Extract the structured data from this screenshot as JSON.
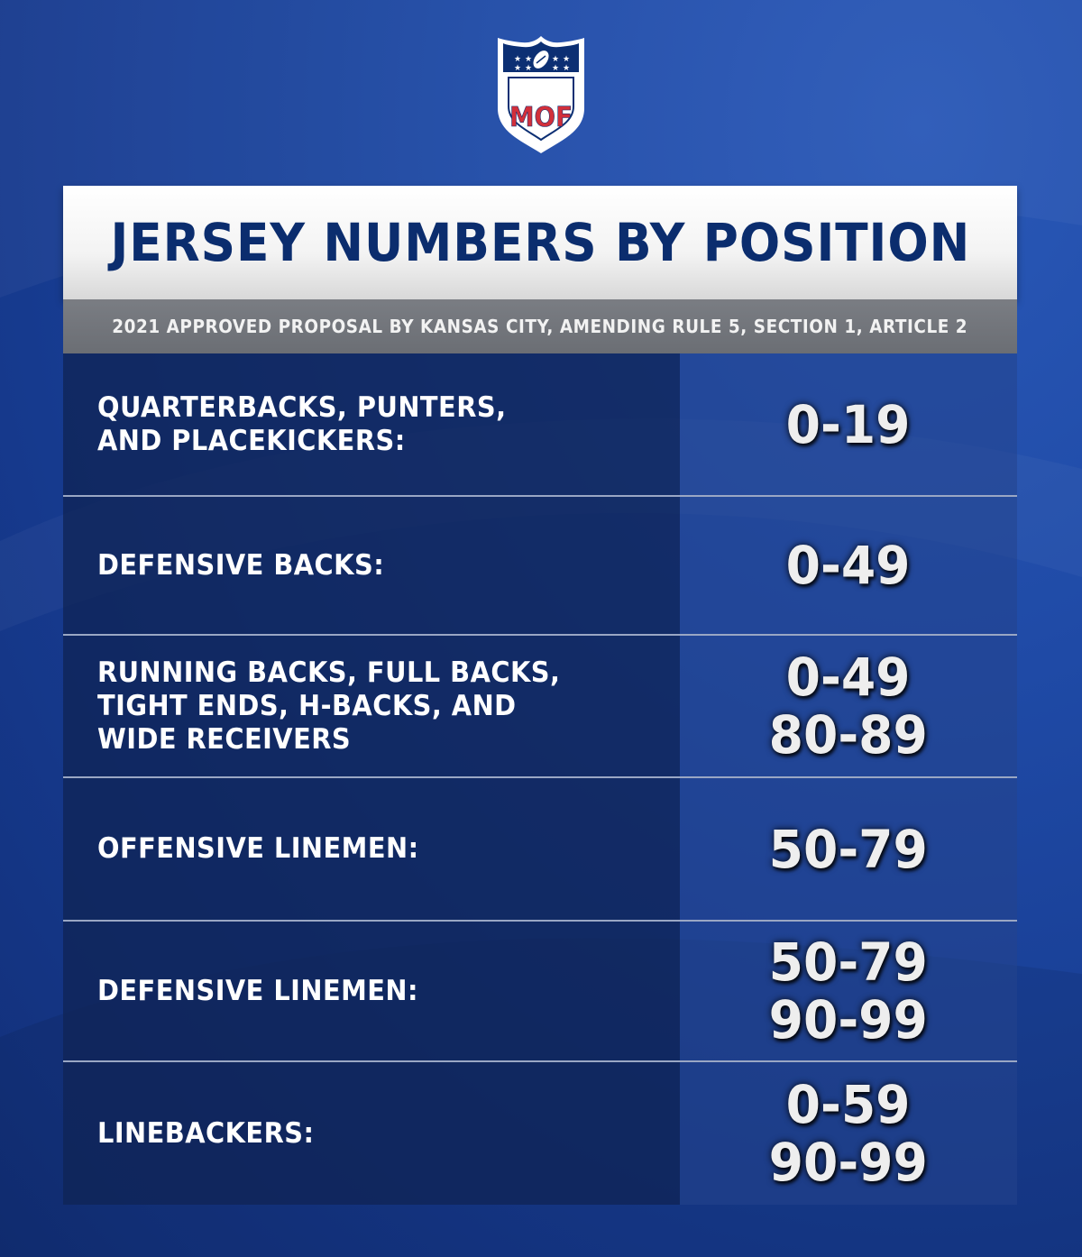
{
  "logo": {
    "text": "MOF",
    "icon": "shield-logo-with-stars-and-football"
  },
  "title": "JERSEY NUMBERS BY POSITION",
  "subtitle": "2021 APPROVED PROPOSAL BY KANSAS CITY, AMENDING RULE 5, SECTION 1, ARTICLE 2",
  "rows": [
    {
      "position": "QUARTERBACKS, PUNTERS,\nAND PLACEKICKERS:",
      "numbers": [
        "0-19"
      ]
    },
    {
      "position": "DEFENSIVE BACKS:",
      "numbers": [
        "0-49"
      ]
    },
    {
      "position": "RUNNING BACKS, FULL BACKS,\nTIGHT ENDS, H-BACKS, AND\nWIDE RECEIVERS",
      "numbers": [
        "0-49",
        "80-89"
      ]
    },
    {
      "position": "OFFENSIVE LINEMEN:",
      "numbers": [
        "50-79"
      ]
    },
    {
      "position": "DEFENSIVE LINEMEN:",
      "numbers": [
        "50-79",
        "90-99"
      ]
    },
    {
      "position": "LINEBACKERS:",
      "numbers": [
        "0-59",
        "90-99"
      ]
    }
  ],
  "colors": {
    "title": "#0b2d6e",
    "logo_red": "#d22f3a",
    "logo_navy": "#0c2f73"
  }
}
